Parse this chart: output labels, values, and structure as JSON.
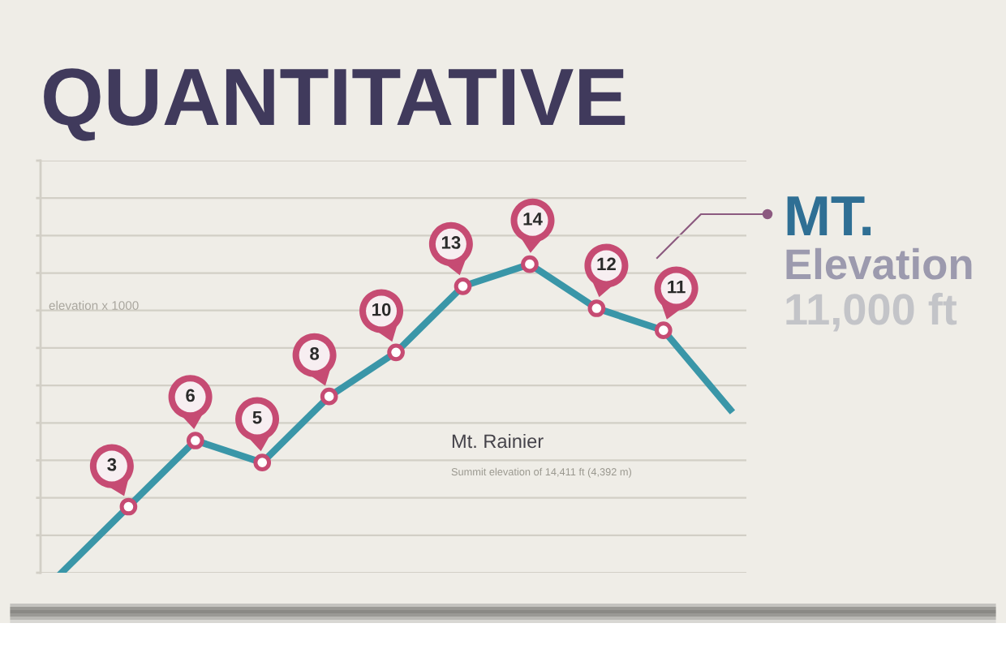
{
  "chart_data": {
    "type": "line",
    "title": "QUANTITATIVE",
    "ylabel": "elevation x 1000",
    "categories": [
      null,
      null,
      null,
      null,
      null,
      null,
      null,
      null,
      null,
      null,
      null
    ],
    "series": [
      {
        "color": "#3a96a8",
        "values": [
          0,
          3,
          6,
          5,
          8,
          10,
          13,
          14,
          12,
          11,
          7.4
        ],
        "value_labels": [
          null,
          "3",
          "6",
          "5",
          "8",
          "10",
          "13",
          "14",
          "12",
          "11",
          null
        ]
      }
    ],
    "ylim": [
      0,
      18.7
    ],
    "yticks": [
      {
        "value": 0,
        "label": null
      },
      {
        "value": 1.7,
        "label": null
      },
      {
        "value": 3.4,
        "label": null
      },
      {
        "value": 5.1,
        "label": null
      },
      {
        "value": 6.8,
        "label": null
      },
      {
        "value": 8.5,
        "label": null
      },
      {
        "value": 10.2,
        "label": null
      },
      {
        "value": 11.9,
        "label": null
      },
      {
        "value": 13.6,
        "label": null
      },
      {
        "value": 15.3,
        "label": null
      },
      {
        "value": 17.0,
        "label": null
      },
      {
        "value": 18.7,
        "label": null
      }
    ],
    "grid": "y",
    "marker": "circle",
    "line_style": "solid",
    "annotations": [
      "MT.",
      "Elevation",
      "11,000 ft",
      "Mt. Rainier",
      "Summit elevation of 14,411 ft (4,392 m)"
    ]
  }
}
